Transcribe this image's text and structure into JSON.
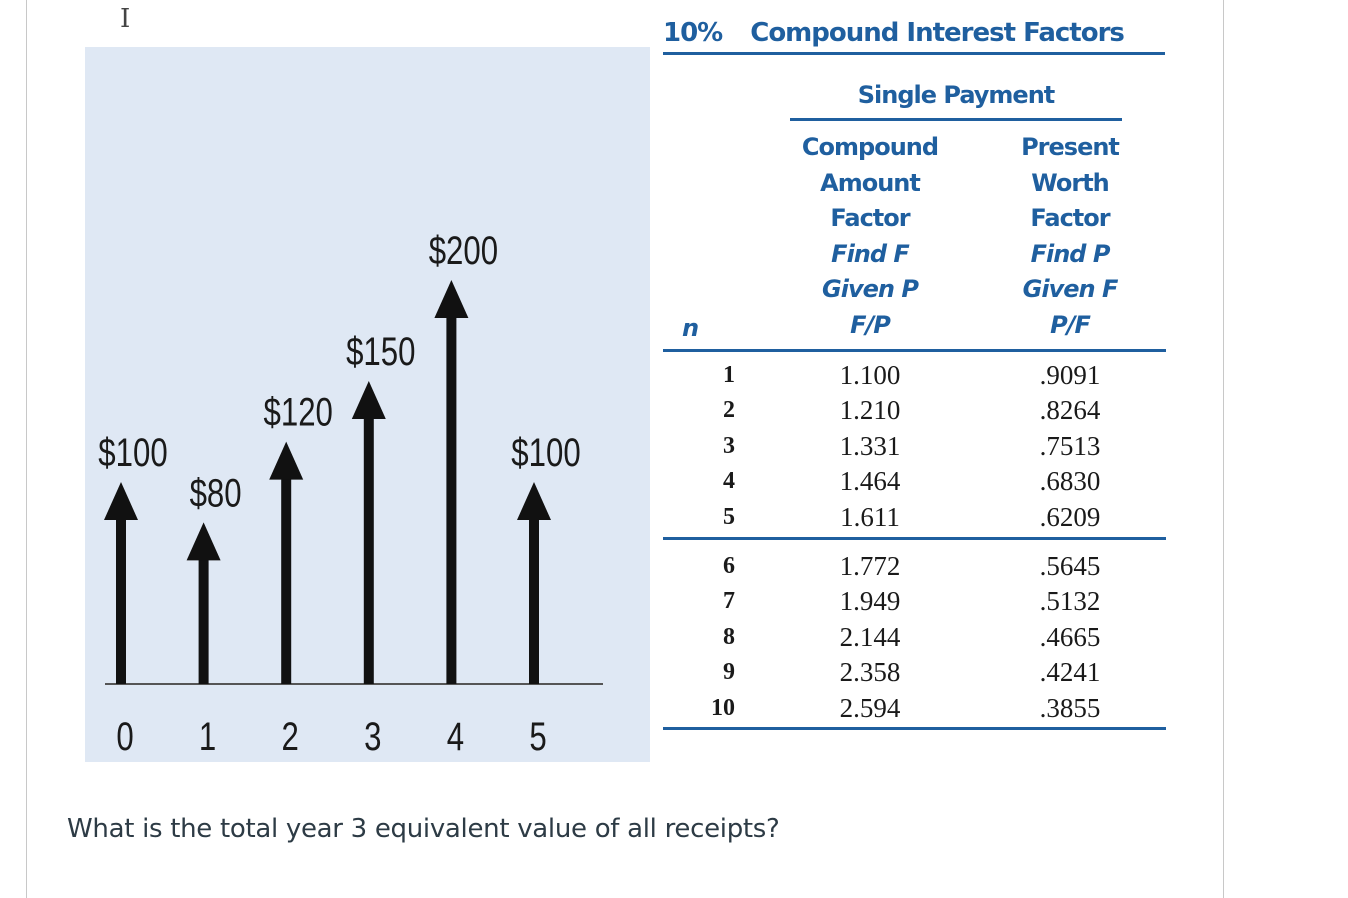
{
  "cash_flow_diagram": {
    "flows": [
      {
        "year": 0,
        "label": "$100",
        "amount": 100
      },
      {
        "year": 1,
        "label": "$80",
        "amount": 80
      },
      {
        "year": 2,
        "label": "$120",
        "amount": 120
      },
      {
        "year": 3,
        "label": "$150",
        "amount": 150
      },
      {
        "year": 4,
        "label": "$200",
        "amount": 200
      },
      {
        "year": 5,
        "label": "$100",
        "amount": 100
      }
    ],
    "year_labels": [
      "0",
      "1",
      "2",
      "3",
      "4",
      "5"
    ],
    "colors": {
      "panel": "#dfe8f4",
      "arrow": "#111111",
      "axis": "#555555"
    }
  },
  "factor_table": {
    "title_rate": "10%",
    "title_text": "Compound Interest Factors",
    "group_header": "Single Payment",
    "col_n": "n",
    "col_fp": [
      "Compound",
      "Amount",
      "Factor",
      "Find F",
      "Given P",
      "F/P"
    ],
    "col_pf": [
      "Present",
      "Worth",
      "Factor",
      "Find P",
      "Given F",
      "P/F"
    ],
    "rows": [
      {
        "n": "1",
        "fp": "1.100",
        "pf": ".9091"
      },
      {
        "n": "2",
        "fp": "1.210",
        "pf": ".8264"
      },
      {
        "n": "3",
        "fp": "1.331",
        "pf": ".7513"
      },
      {
        "n": "4",
        "fp": "1.464",
        "pf": ".6830"
      },
      {
        "n": "5",
        "fp": "1.611",
        "pf": ".6209"
      },
      {
        "n": "6",
        "fp": "1.772",
        "pf": ".5645"
      },
      {
        "n": "7",
        "fp": "1.949",
        "pf": ".5132"
      },
      {
        "n": "8",
        "fp": "2.144",
        "pf": ".4665"
      },
      {
        "n": "9",
        "fp": "2.358",
        "pf": ".4241"
      },
      {
        "n": "10",
        "fp": "2.594",
        "pf": ".3855"
      }
    ],
    "accent_color": "#1f5f9f"
  },
  "question": "What is the total year 3 equivalent value of all receipts?",
  "cursor_glyph": "I"
}
